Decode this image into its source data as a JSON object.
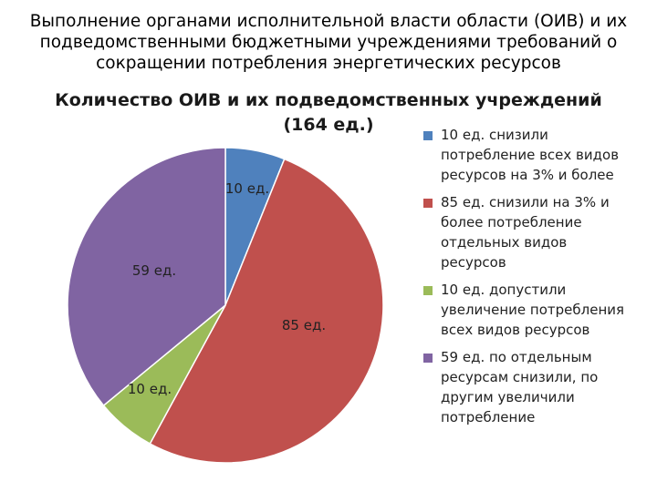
{
  "slide": {
    "title_lines": [
      "Выполнение органами исполнительной власти области (ОИВ) и их",
      "подведомственными бюджетными учреждениями требований о",
      "сокращении потребления энергетических ресурсов"
    ]
  },
  "chart_data": {
    "type": "pie",
    "title_lines": [
      "Количество ОИВ и их подведомственных учреждений",
      "(164 ед.)"
    ],
    "total": 164,
    "slices": [
      {
        "value": 10,
        "label": "10 ед.",
        "legend_lines": [
          "10 ед. снизили",
          "потребление всех видов",
          "ресурсов на 3% и более"
        ],
        "color": "#4f81bd"
      },
      {
        "value": 85,
        "label": "85 ед.",
        "legend_lines": [
          "85 ед. снизили на 3% и",
          "более потребление",
          "отдельных видов",
          "ресурсов"
        ],
        "color": "#c0504d"
      },
      {
        "value": 10,
        "label": "10 ед.",
        "legend_lines": [
          "10 ед. допустили",
          "увеличение потребления",
          "всех видов ресурсов"
        ],
        "color": "#9bbb59"
      },
      {
        "value": 59,
        "label": "59 ед.",
        "legend_lines": [
          "59 ед. по отдельным",
          "ресурсам снизили, по",
          "другим увеличили",
          "потребление"
        ],
        "color": "#8064a2"
      }
    ],
    "legend_position": "right"
  }
}
